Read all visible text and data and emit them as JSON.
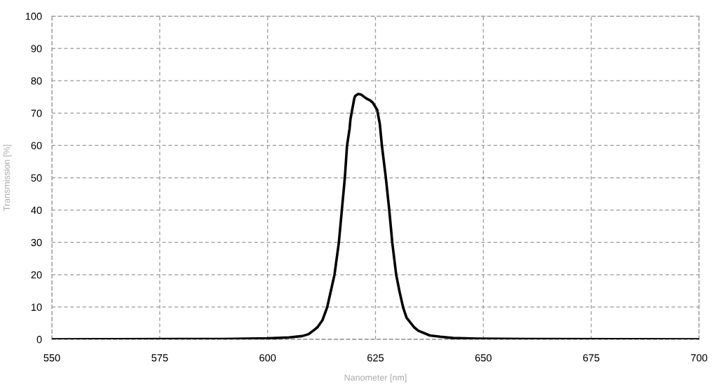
{
  "chart_data": {
    "type": "line",
    "xlabel": "Nanometer [nm]",
    "ylabel": "Transmission [%]",
    "x": [
      550,
      590,
      600,
      605,
      608,
      609.5,
      610.6,
      611.6,
      612.7,
      613.8,
      614.6,
      615.5,
      616.5,
      617.2,
      617.9,
      618.4,
      619.0,
      619.2,
      619.5,
      620.1,
      620.3,
      621.0,
      621.7,
      622.8,
      623.8,
      624.4,
      624.9,
      625.4,
      625.7,
      626.0,
      626.5,
      627.4,
      628.2,
      628.9,
      629.8,
      630.6,
      631.4,
      632.2,
      633.9,
      634.9,
      637.6,
      640,
      643,
      648.5,
      660,
      700
    ],
    "series": [
      {
        "color": "#000000",
        "values": [
          0,
          0.1,
          0.3,
          0.6,
          1.0,
          1.6,
          2.7,
          3.8,
          5.9,
          9.9,
          14.6,
          20.0,
          29.8,
          39.9,
          50.0,
          59.8,
          65.2,
          68.1,
          70.3,
          74.6,
          75.3,
          75.9,
          75.7,
          74.6,
          73.9,
          73.2,
          72.1,
          71.0,
          68.8,
          66.7,
          59.8,
          50.0,
          39.9,
          29.8,
          20.0,
          14.6,
          9.9,
          6.7,
          3.8,
          2.7,
          1.2,
          0.8,
          0.4,
          0.2,
          0.1,
          0
        ]
      }
    ],
    "xlim": [
      550,
      700
    ],
    "xticks": [
      550,
      575,
      600,
      625,
      650,
      675,
      700
    ],
    "ylim": [
      0,
      100
    ],
    "yticks": [
      0,
      10,
      20,
      30,
      40,
      50,
      60,
      70,
      80,
      90,
      100
    ],
    "grid": true,
    "line_style": "solid"
  }
}
